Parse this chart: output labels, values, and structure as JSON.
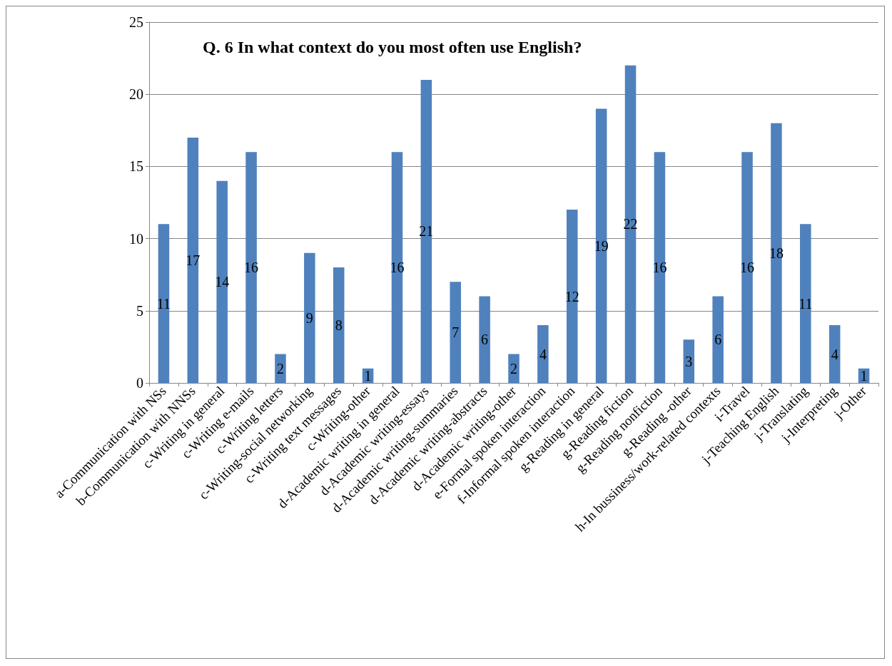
{
  "chart_data": {
    "type": "bar",
    "title": "Q. 6 In what context do you most often use English?",
    "categories": [
      "a-Communication with NSs",
      "b-Communication with NNSs",
      "c-Writing in general",
      "c-Writing e-mails",
      "c-Writing letters",
      "c-Writing-social networking",
      "c-Writing text messages",
      "c-Writing-other",
      "d-Academic writing in general",
      "d-Academic writing-essays",
      "d-Academic writing-summaries",
      "d-Academic writing-abstracts",
      "d-Academic writing-other",
      "e-Formal spoken interaction",
      "f-Informal spoken interaction",
      "g-Reading in general",
      "g-Reading fiction",
      "g-Reading nonfiction",
      "g-Reading -other",
      "h-In bussiness/work-related contexts",
      "i-Travel",
      "j-Teaching English",
      "j-Translating",
      "j-Interpreting",
      "j-Other"
    ],
    "values": [
      11,
      17,
      14,
      16,
      2,
      9,
      8,
      1,
      16,
      21,
      7,
      6,
      2,
      4,
      12,
      19,
      22,
      16,
      3,
      6,
      16,
      18,
      11,
      4,
      1
    ],
    "color": "#4f81bd",
    "ylim": [
      0,
      25
    ],
    "yticks": [
      0,
      5,
      10,
      15,
      20,
      25
    ],
    "grid": "y",
    "data_labels": true
  }
}
